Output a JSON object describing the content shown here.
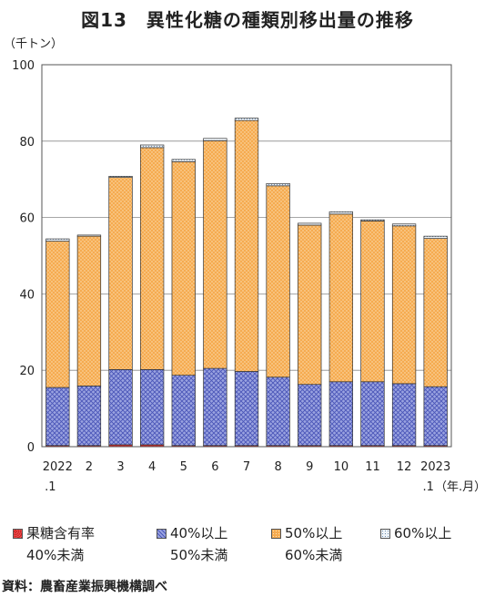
{
  "title": "図13　異性化糖の種類別移出量の推移",
  "source": "資料：農畜産業振興機構調べ",
  "chart_data": {
    "type": "bar",
    "stacked": true,
    "y_unit_label": "（千トン）",
    "x_unit_label": "（年.月）",
    "ylim": [
      0,
      100
    ],
    "yticks": [
      0,
      20,
      40,
      60,
      80,
      100
    ],
    "grid": true,
    "categories": [
      "2022\n.1",
      "2",
      "3",
      "4",
      "5",
      "6",
      "7",
      "8",
      "9",
      "10",
      "11",
      "12",
      "2023\n.1"
    ],
    "series": [
      {
        "name_line1": "果糖含有率",
        "name_line2": "40%未満",
        "color": "#e03030",
        "values": [
          0.3,
          0.3,
          0.5,
          0.5,
          0.3,
          0.3,
          0.3,
          0.3,
          0.3,
          0.3,
          0.3,
          0.3,
          0.3
        ]
      },
      {
        "name_line1": "40%以上",
        "name_line2": "50%未満",
        "color": "#7b86d6",
        "values": [
          15.2,
          15.6,
          19.7,
          19.7,
          18.4,
          20.2,
          19.4,
          17.9,
          16.0,
          16.7,
          16.7,
          16.2,
          15.4
        ]
      },
      {
        "name_line1": "50%以上",
        "name_line2": "60%未満",
        "color": "#f4a94c",
        "values": [
          38.3,
          39.2,
          50.3,
          58.1,
          55.9,
          59.6,
          65.7,
          50.1,
          41.7,
          43.9,
          42.1,
          41.3,
          38.8
        ]
      },
      {
        "name_line1": "60%以上",
        "name_line2": "",
        "color": "#dfe8f2",
        "values": [
          0.6,
          0.3,
          0.3,
          0.7,
          0.6,
          0.6,
          0.6,
          0.6,
          0.5,
          0.6,
          0.3,
          0.5,
          0.6
        ]
      }
    ]
  }
}
